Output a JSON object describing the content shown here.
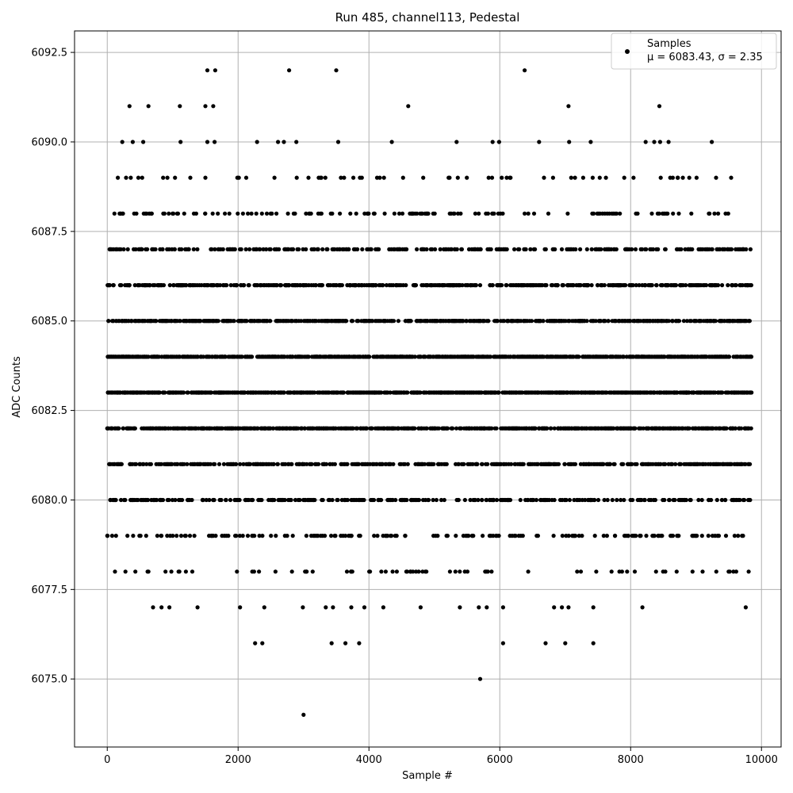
{
  "chart_data": {
    "type": "scatter",
    "title": "Run 485, channel113, Pedestal",
    "xlabel": "Sample #",
    "ylabel": "ADC Counts",
    "xlim": [
      -500,
      10300
    ],
    "ylim": [
      6073.1,
      6093.1
    ],
    "xticks": [
      0,
      2000,
      4000,
      6000,
      8000,
      10000
    ],
    "xtick_labels": [
      "0",
      "2000",
      "4000",
      "6000",
      "8000",
      "10000"
    ],
    "yticks": [
      6075.0,
      6077.5,
      6080.0,
      6082.5,
      6085.0,
      6087.5,
      6090.0,
      6092.5
    ],
    "ytick_labels": [
      "6075.0",
      "6077.5",
      "6080.0",
      "6082.5",
      "6085.0",
      "6087.5",
      "6090.0",
      "6092.5"
    ],
    "grid": true,
    "legend_position": "top-right",
    "series": [
      {
        "name": "Samples",
        "color": "#000000",
        "marker": "dot",
        "n_samples": 9850,
        "mean": 6083.43,
        "sigma": 2.35,
        "rare_points": [
          [
            0,
            6079
          ],
          [
            430,
            6078
          ],
          [
            3000,
            6074
          ],
          [
            5700,
            6075
          ],
          [
            2260,
            6076
          ],
          [
            2370,
            6076
          ],
          [
            3430,
            6076
          ],
          [
            3640,
            6076
          ],
          [
            3850,
            6076
          ],
          [
            6050,
            6076
          ],
          [
            6700,
            6076
          ],
          [
            7000,
            6076
          ],
          [
            7430,
            6076
          ],
          [
            700,
            6077
          ],
          [
            830,
            6077
          ],
          [
            950,
            6077
          ],
          [
            1380,
            6077
          ],
          [
            2030,
            6077
          ],
          [
            2400,
            6077
          ],
          [
            2990,
            6077
          ],
          [
            3340,
            6077
          ],
          [
            3450,
            6077
          ],
          [
            3730,
            6077
          ],
          [
            3930,
            6077
          ],
          [
            4220,
            6077
          ],
          [
            4790,
            6077
          ],
          [
            5390,
            6077
          ],
          [
            5680,
            6077
          ],
          [
            5800,
            6077
          ],
          [
            6050,
            6077
          ],
          [
            6830,
            6077
          ],
          [
            6950,
            6077
          ],
          [
            7050,
            6077
          ],
          [
            7430,
            6077
          ],
          [
            8180,
            6077
          ],
          [
            9760,
            6077
          ],
          [
            1530,
            6092
          ],
          [
            1650,
            6092
          ],
          [
            2780,
            6092
          ],
          [
            3500,
            6092
          ],
          [
            6380,
            6092
          ],
          [
            340,
            6091
          ],
          [
            630,
            6091
          ],
          [
            1110,
            6091
          ],
          [
            1500,
            6091
          ],
          [
            1620,
            6091
          ],
          [
            4600,
            6091
          ],
          [
            7050,
            6091
          ],
          [
            8440,
            6091
          ],
          [
            230,
            6090
          ],
          [
            390,
            6090
          ],
          [
            550,
            6090
          ],
          [
            1120,
            6090
          ],
          [
            1530,
            6090
          ],
          [
            1640,
            6090
          ],
          [
            2290,
            6090
          ],
          [
            2610,
            6090
          ],
          [
            2700,
            6090
          ],
          [
            2890,
            6090
          ],
          [
            3530,
            6090
          ],
          [
            4350,
            6090
          ],
          [
            5340,
            6090
          ],
          [
            5890,
            6090
          ],
          [
            5990,
            6090
          ],
          [
            6600,
            6090
          ],
          [
            7060,
            6090
          ],
          [
            7390,
            6090
          ],
          [
            8230,
            6090
          ],
          [
            8360,
            6090
          ],
          [
            8450,
            6090
          ],
          [
            8580,
            6090
          ],
          [
            9240,
            6090
          ]
        ]
      }
    ],
    "legend": {
      "entry": "Samples",
      "stats": "μ = 6083.43, σ = 2.35"
    }
  }
}
